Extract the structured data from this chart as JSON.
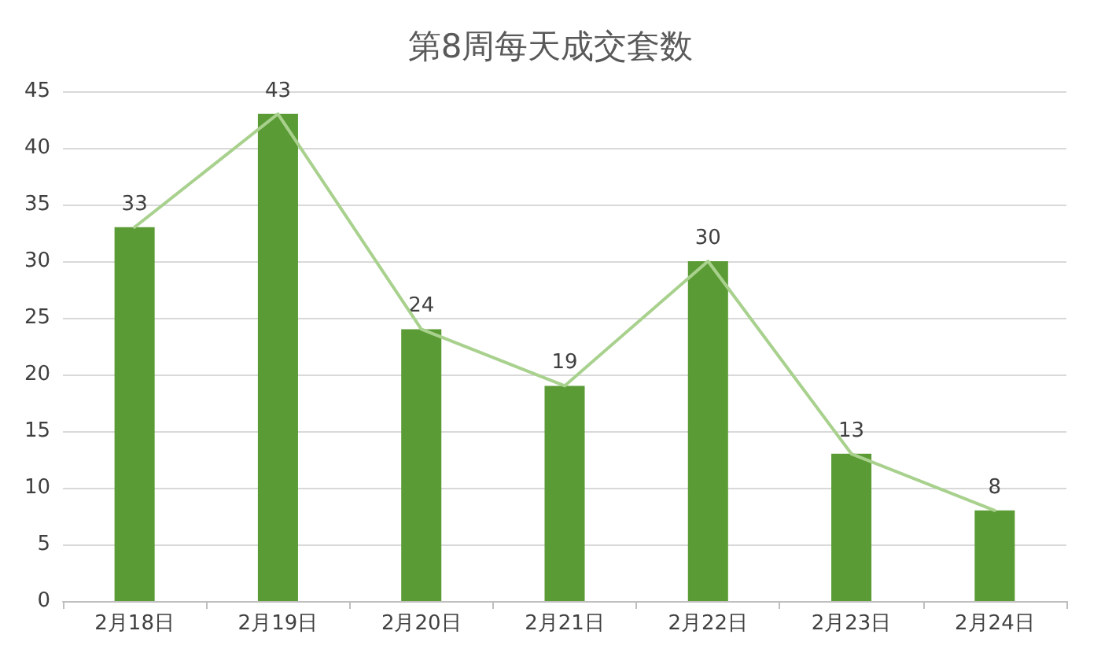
{
  "chart_data": {
    "type": "bar",
    "title": "第8周每天成交套数",
    "categories": [
      "2月18日",
      "2月19日",
      "2月20日",
      "2月21日",
      "2月22日",
      "2月23日",
      "2月24日"
    ],
    "series": [
      {
        "color": "#5b9b35",
        "values": [
          33,
          43,
          24,
          19,
          30,
          13,
          8
        ],
        "value_labels": [
          "33",
          "43",
          "24",
          "19",
          "30",
          "13",
          "8"
        ]
      },
      {
        "type": "line",
        "color": "#a9d18e",
        "values": [
          33,
          43,
          24,
          19,
          30,
          13,
          8
        ]
      }
    ],
    "ylim": [
      0,
      45
    ],
    "yticks": [
      0,
      5,
      10,
      15,
      20,
      25,
      30,
      35,
      40,
      45
    ],
    "grid": "y",
    "marker": "none",
    "line_style": "solid"
  }
}
